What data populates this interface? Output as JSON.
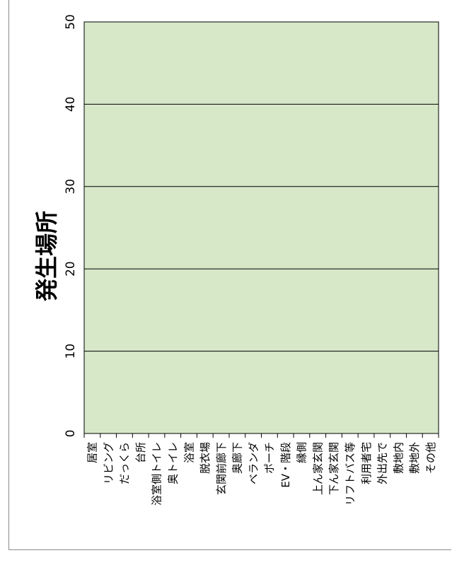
{
  "chart_data": {
    "type": "bar",
    "ylabel": "発生場所",
    "ylim": [
      0,
      50
    ],
    "yticks": [
      0,
      10,
      20,
      30,
      40,
      50
    ],
    "categories": [
      "居室",
      "リビング",
      "だっくら",
      "台所",
      "浴室側トイレ",
      "奥トイレ",
      "浴室",
      "脱衣場",
      "玄関前廊下",
      "奥廊下",
      "ベランダ",
      "ポーチ",
      "EV・階段",
      "縁側",
      "上ん家玄関",
      "下ん家玄関",
      "リフトバス等",
      "利用者宅",
      "外出先で",
      "敷地内",
      "敷地外",
      "その他"
    ],
    "values": [
      0,
      0,
      0,
      0,
      0,
      0,
      0,
      0,
      0,
      0,
      0,
      0,
      0,
      0,
      0,
      0,
      0,
      0,
      0,
      0,
      0,
      0
    ],
    "grid": true,
    "colors": {
      "plot_bg": "#d6e8c8",
      "bar": "#3a6fb0",
      "grid": "#000000"
    }
  }
}
